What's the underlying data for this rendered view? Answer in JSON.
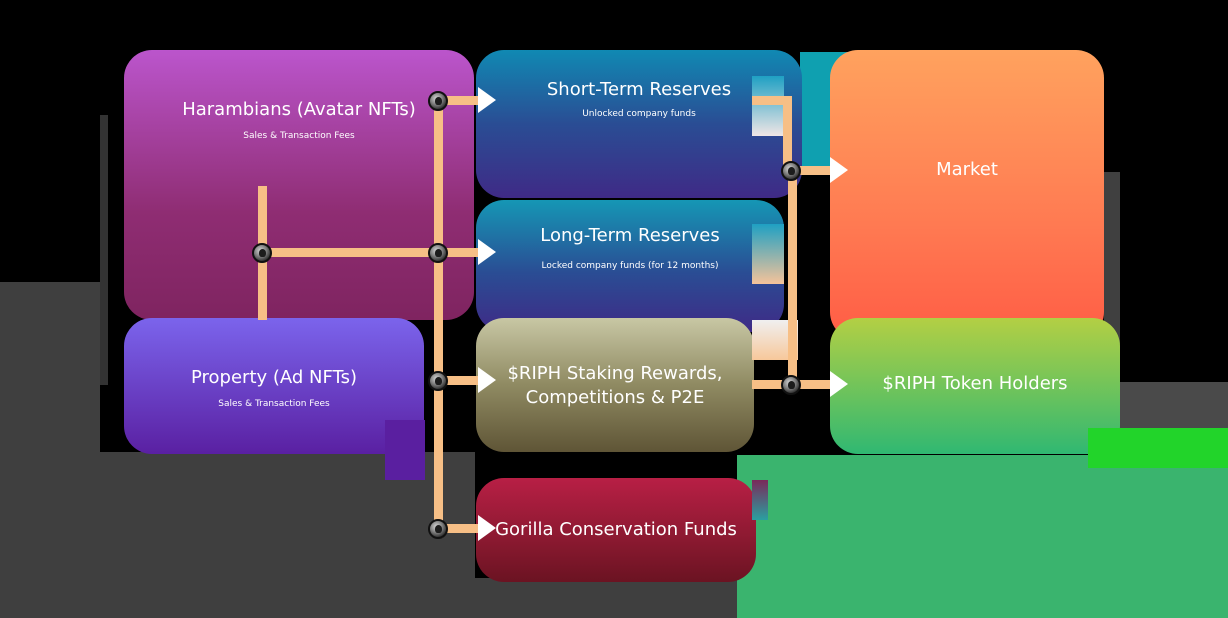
{
  "diagram": {
    "sources": [
      {
        "id": "harambians",
        "title": "Harambians (Avatar NFTs)",
        "subtitle": "Sales & Transaction Fees"
      },
      {
        "id": "property",
        "title": "Property (Ad NFTs)",
        "subtitle": "Sales & Transaction Fees"
      }
    ],
    "allocations": [
      {
        "id": "short_term",
        "title": "Short-Term Reserves",
        "subtitle": "Unlocked company funds"
      },
      {
        "id": "long_term",
        "title": "Long-Term Reserves",
        "subtitle": "Locked company funds (for 12 months)"
      },
      {
        "id": "staking",
        "title_line1": "$RIPH Staking Rewards,",
        "title_line2": "Competitions & P2E"
      },
      {
        "id": "gorilla",
        "title": "Gorilla Conservation Funds"
      }
    ],
    "destinations": [
      {
        "id": "market",
        "title": "Market"
      },
      {
        "id": "holders",
        "title": "$RIPH Token Holders"
      }
    ]
  },
  "colors": {
    "connector": "#f7bf86",
    "harambians": [
      "#bb55cc",
      "#8a2a66"
    ],
    "property": [
      "#7b64ec",
      "#5a1fa0"
    ],
    "short_term": [
      "#1089b3",
      "#3f2a86"
    ],
    "long_term": [
      "#1597b5",
      "#3f2a86"
    ],
    "staking": [
      "#c7c6a2",
      "#5f5536"
    ],
    "gorilla": [
      "#b41f44",
      "#731525"
    ],
    "market": [
      "#ffa25e",
      "#ff5c45"
    ],
    "holders": [
      "#b3cf44",
      "#30b872"
    ]
  }
}
